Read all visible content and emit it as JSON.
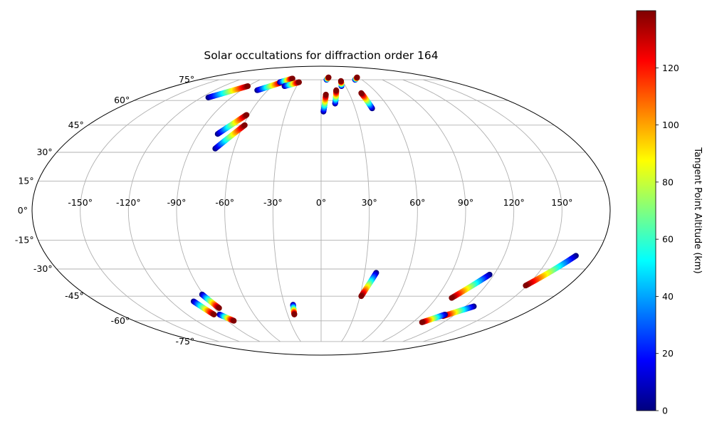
{
  "chart_data": {
    "type": "scatter",
    "projection": "mollweide",
    "title": "Solar occultations for diffraction order 164",
    "lon_ticks": [
      "-150°",
      "-120°",
      "-90°",
      "-60°",
      "-30°",
      "0°",
      "30°",
      "60°",
      "90°",
      "120°",
      "150°"
    ],
    "lat_ticks": [
      "-75°",
      "-60°",
      "-45°",
      "-30°",
      "-15°",
      "0°",
      "15°",
      "30°",
      "45°",
      "60°",
      "75°"
    ],
    "grid": true,
    "colormap": "jet",
    "colorbar": {
      "label": "Tangent Point Altitude (km)",
      "range": [
        0,
        140
      ],
      "ticks": [
        "0",
        "20",
        "40",
        "60",
        "80",
        "100",
        "120"
      ]
    },
    "tracks": [
      {
        "lon": [
          -113,
          -90
        ],
        "lat": [
          62,
          70
        ],
        "alt": [
          0,
          140
        ]
      },
      {
        "lon": [
          -72,
          -53
        ],
        "lat": [
          67,
          73
        ],
        "alt": [
          0,
          140
        ]
      },
      {
        "lon": [
          -56,
          -44
        ],
        "lat": [
          73,
          76
        ],
        "alt": [
          0,
          140
        ]
      },
      {
        "lon": [
          -45,
          -30
        ],
        "lat": [
          70,
          73
        ],
        "alt": [
          0,
          140
        ]
      },
      {
        "lon": [
          -76,
          -62
        ],
        "lat": [
          40,
          51
        ],
        "alt": [
          0,
          140
        ]
      },
      {
        "lon": [
          -73,
          -59
        ],
        "lat": [
          32,
          45
        ],
        "alt": [
          0,
          140
        ]
      },
      {
        "lon": [
          2,
          5
        ],
        "lat": [
          53,
          64
        ],
        "alt": [
          0,
          140
        ]
      },
      {
        "lon": [
          8,
          12
        ],
        "lat": [
          75,
          77
        ],
        "alt": [
          0,
          140
        ]
      },
      {
        "lon": [
          13,
          17
        ],
        "lat": [
          58,
          67
        ],
        "alt": [
          0,
          140
        ]
      },
      {
        "lon": [
          25,
          28
        ],
        "lat": [
          70,
          74
        ],
        "alt": [
          0,
          140
        ]
      },
      {
        "lon": [
          45,
          43
        ],
        "lat": [
          55,
          65
        ],
        "alt": [
          0,
          140
        ]
      },
      {
        "lon": [
          50,
          58
        ],
        "lat": [
          75,
          77
        ],
        "alt": [
          0,
          140
        ]
      },
      {
        "lon": [
          -102,
          -96
        ],
        "lat": [
          -48,
          -56
        ],
        "alt": [
          0,
          140
        ]
      },
      {
        "lon": [
          -91,
          -86
        ],
        "lat": [
          -44,
          -52
        ],
        "alt": [
          0,
          140
        ]
      },
      {
        "lon": [
          -91,
          -84
        ],
        "lat": [
          -56,
          -60
        ],
        "alt": [
          0,
          140
        ]
      },
      {
        "lon": [
          -23,
          -24
        ],
        "lat": [
          -50,
          -56
        ],
        "alt": [
          0,
          140
        ]
      },
      {
        "lon": [
          38,
          31
        ],
        "lat": [
          -32,
          -45
        ],
        "alt": [
          0,
          140
        ]
      },
      {
        "lon": [
          117,
          102
        ],
        "lat": [
          -33,
          -46
        ],
        "alt": [
          0,
          140
        ]
      },
      {
        "lon": [
          127,
          111
        ],
        "lat": [
          -51,
          -57
        ],
        "alt": [
          0,
          140
        ]
      },
      {
        "lon": [
          111,
          99
        ],
        "lat": [
          -56,
          -61
        ],
        "alt": [
          0,
          140
        ]
      },
      {
        "lon": [
          167,
          149
        ],
        "lat": [
          -23,
          -39
        ],
        "alt": [
          0,
          140
        ]
      }
    ]
  }
}
